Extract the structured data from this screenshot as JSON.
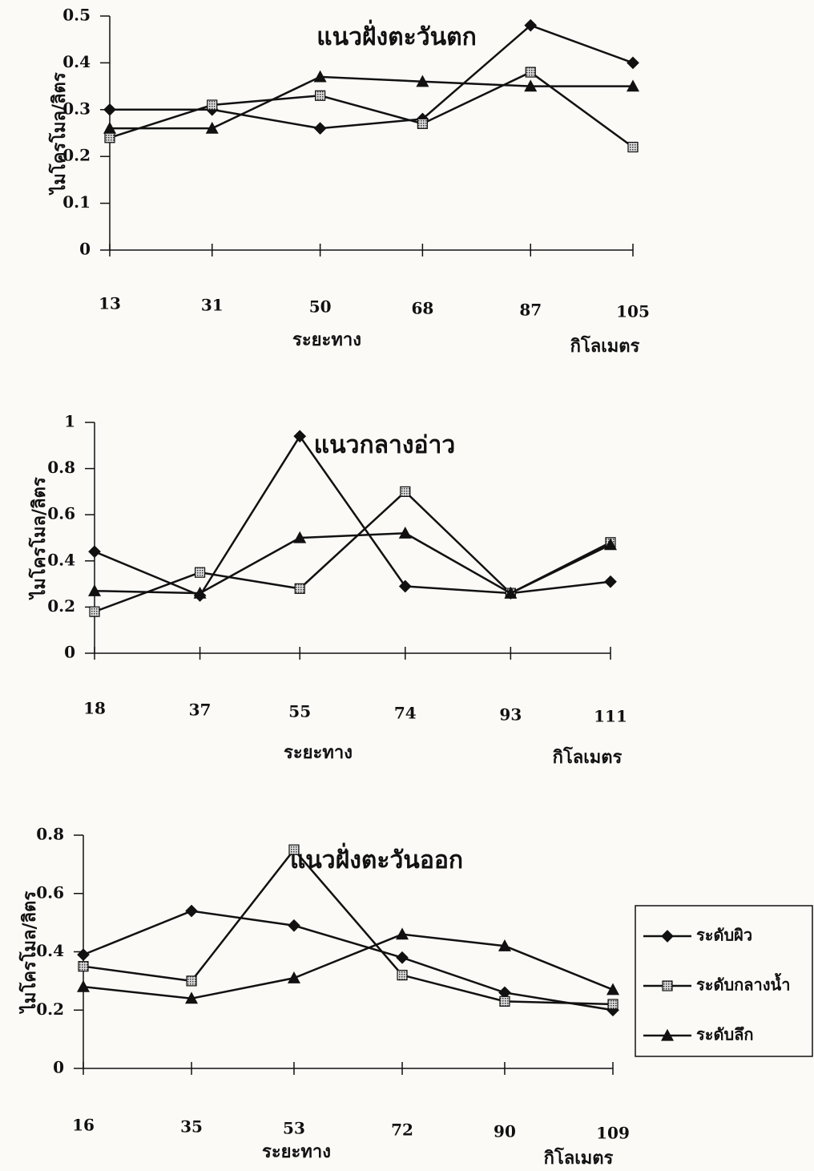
{
  "chart_data": [
    {
      "type": "line",
      "title": "แนวฝั่งตะวันตก",
      "y_label": "ไมโครโมล/ลิตร",
      "x_label": "ระยะทาง",
      "x_unit": "กิโลเมตร",
      "x": [
        13,
        31,
        50,
        68,
        87,
        105
      ],
      "xlim": [
        13,
        105
      ],
      "xticks": [
        13,
        31,
        50,
        68,
        87,
        105
      ],
      "ylim": [
        0,
        0.5
      ],
      "yticks": [
        0,
        0.1,
        0.2,
        0.3,
        0.4,
        0.5
      ],
      "grid": false,
      "series": [
        {
          "color": "#111111",
          "marker": "diamond",
          "values": [
            0.3,
            0.3,
            0.26,
            0.28,
            0.48,
            0.4
          ]
        },
        {
          "color": "#111111",
          "marker": "square",
          "values": [
            0.24,
            0.31,
            0.33,
            0.27,
            0.38,
            0.22
          ]
        },
        {
          "color": "#111111",
          "marker": "triangle",
          "values": [
            0.26,
            0.26,
            0.37,
            0.36,
            0.35,
            0.35
          ]
        }
      ]
    },
    {
      "type": "line",
      "title": "แนวกลางอ่าว",
      "y_label": "ไมโครโมล/ลิตร",
      "x_label": "ระยะทาง",
      "x_unit": "กิโลเมตร",
      "x": [
        18,
        37,
        55,
        74,
        93,
        111
      ],
      "xlim": [
        18,
        111
      ],
      "xticks": [
        18,
        37,
        55,
        74,
        93,
        111
      ],
      "ylim": [
        0,
        1
      ],
      "yticks": [
        0,
        0.2,
        0.4,
        0.6,
        0.8,
        1
      ],
      "grid": false,
      "series": [
        {
          "color": "#111111",
          "marker": "diamond",
          "values": [
            0.44,
            0.25,
            0.94,
            0.29,
            0.26,
            0.31
          ]
        },
        {
          "color": "#111111",
          "marker": "square",
          "values": [
            0.18,
            0.35,
            0.28,
            0.7,
            0.26,
            0.48
          ]
        },
        {
          "color": "#111111",
          "marker": "triangle",
          "values": [
            0.27,
            0.26,
            0.5,
            0.52,
            0.26,
            0.47
          ]
        }
      ]
    },
    {
      "type": "line",
      "title": "แนวฝั่งตะวันออก",
      "y_label": "ไมโครโมล/ลิตร",
      "x_label": "ระยะทาง",
      "x_unit": "กิโลเมตร",
      "x": [
        16,
        35,
        53,
        72,
        90,
        109
      ],
      "xlim": [
        16,
        109
      ],
      "xticks": [
        16,
        35,
        53,
        72,
        90,
        109
      ],
      "ylim": [
        0,
        0.8
      ],
      "yticks": [
        0,
        0.2,
        0.4,
        0.6,
        0.8
      ],
      "grid": false,
      "legend": "right",
      "series": [
        {
          "name": "ระดับผิว",
          "color": "#111111",
          "marker": "diamond",
          "values": [
            0.39,
            0.54,
            0.49,
            0.38,
            0.26,
            0.2
          ]
        },
        {
          "name": "ระดับกลางน้ำ",
          "color": "#111111",
          "marker": "square",
          "values": [
            0.35,
            0.3,
            0.75,
            0.32,
            0.23,
            0.22
          ]
        },
        {
          "name": "ระดับลึก",
          "color": "#111111",
          "marker": "triangle",
          "values": [
            0.28,
            0.24,
            0.31,
            0.46,
            0.42,
            0.27
          ]
        }
      ]
    }
  ]
}
